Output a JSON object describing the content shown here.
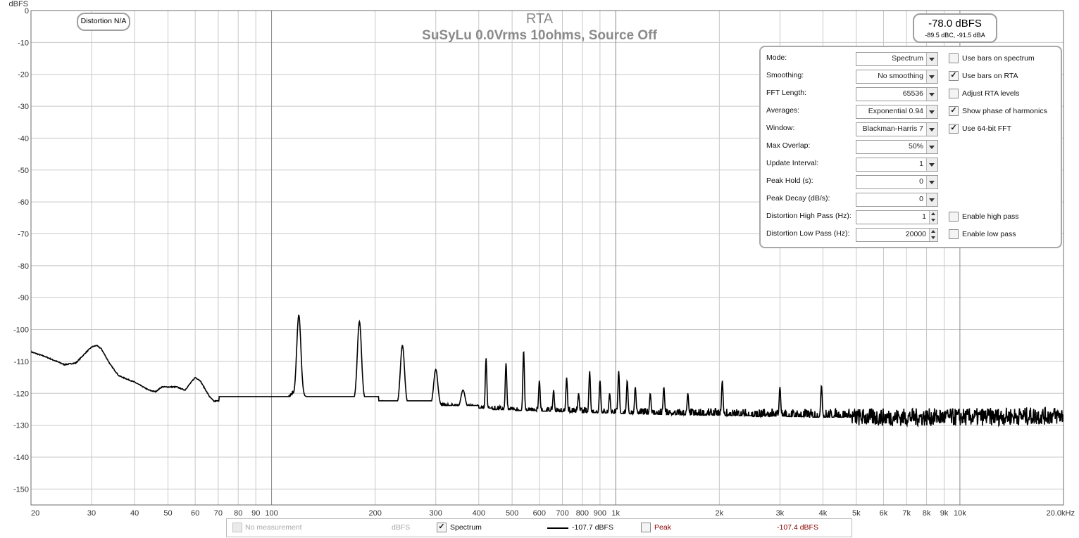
{
  "chart_data": {
    "type": "line",
    "title": "RTA",
    "subtitle": "SuSyLu 0.0Vrms 10ohms, Source Off",
    "ylabel": "dBFS",
    "xlabel": "",
    "xscale": "log",
    "xlim": [
      20,
      20000
    ],
    "ylim": [
      -155,
      0
    ],
    "y_ticks": [
      0,
      -10,
      -20,
      -30,
      -40,
      -50,
      -60,
      -70,
      -80,
      -90,
      -100,
      -110,
      -120,
      -130,
      -140,
      -150
    ],
    "x_ticks": [
      {
        "v": 20,
        "label": "20"
      },
      {
        "v": 30,
        "label": "30"
      },
      {
        "v": 40,
        "label": "40"
      },
      {
        "v": 50,
        "label": "50"
      },
      {
        "v": 60,
        "label": "60"
      },
      {
        "v": 70,
        "label": "70"
      },
      {
        "v": 80,
        "label": "80"
      },
      {
        "v": 90,
        "label": "90"
      },
      {
        "v": 100,
        "label": "100"
      },
      {
        "v": 200,
        "label": "200"
      },
      {
        "v": 300,
        "label": "300"
      },
      {
        "v": 400,
        "label": "400"
      },
      {
        "v": 500,
        "label": "500"
      },
      {
        "v": 600,
        "label": "600"
      },
      {
        "v": 700,
        "label": "700"
      },
      {
        "v": 800,
        "label": "800"
      },
      {
        "v": 900,
        "label": "900"
      },
      {
        "v": 1000,
        "label": "1k"
      },
      {
        "v": 2000,
        "label": "2k"
      },
      {
        "v": 3000,
        "label": "3k"
      },
      {
        "v": 4000,
        "label": "4k"
      },
      {
        "v": 5000,
        "label": "5k"
      },
      {
        "v": 6000,
        "label": "6k"
      },
      {
        "v": 7000,
        "label": "7k"
      },
      {
        "v": 8000,
        "label": "8k"
      },
      {
        "v": 9000,
        "label": "9k"
      },
      {
        "v": 10000,
        "label": "10k"
      },
      {
        "v": 20000,
        "label": "20.0kHz"
      }
    ],
    "grid": true,
    "series": [
      {
        "name": "Spectrum",
        "color": "#000000",
        "noise_floor": [
          [
            20,
            -107
          ],
          [
            22,
            -108.5
          ],
          [
            25,
            -111
          ],
          [
            27,
            -110.5
          ],
          [
            29,
            -107
          ],
          [
            30,
            -105.5
          ],
          [
            31,
            -105
          ],
          [
            32,
            -106
          ],
          [
            34,
            -111
          ],
          [
            36,
            -114.5
          ],
          [
            40,
            -116.5
          ],
          [
            44,
            -119
          ],
          [
            46,
            -119.5
          ],
          [
            48,
            -118
          ],
          [
            50,
            -118
          ],
          [
            53,
            -118
          ],
          [
            56,
            -119
          ],
          [
            60,
            -115
          ],
          [
            62,
            -116
          ],
          [
            66,
            -121
          ],
          [
            68,
            -122.5
          ],
          [
            75,
            -122
          ],
          [
            78,
            -123.5
          ],
          [
            82,
            -123
          ],
          [
            86,
            -122
          ],
          [
            95,
            -122.5
          ],
          [
            105,
            -123
          ],
          [
            110,
            -122
          ],
          [
            115,
            -120
          ],
          [
            125,
            -122
          ],
          [
            135,
            -124
          ],
          [
            150,
            -122
          ],
          [
            170,
            -122
          ],
          [
            200,
            -123
          ],
          [
            250,
            -124
          ],
          [
            300,
            -124
          ],
          [
            400,
            -125
          ],
          [
            500,
            -125.5
          ],
          [
            700,
            -126
          ],
          [
            1000,
            -126.5
          ],
          [
            2000,
            -127
          ],
          [
            4000,
            -127.5
          ],
          [
            10000,
            -127.5
          ],
          [
            20000,
            -127
          ]
        ],
        "peaks": [
          [
            120,
            -95.5
          ],
          [
            180,
            -97.5
          ],
          [
            240,
            -105
          ],
          [
            300,
            -112.5
          ],
          [
            360,
            -119
          ],
          [
            420,
            -109
          ],
          [
            480,
            -110.5
          ],
          [
            540,
            -106.5
          ],
          [
            600,
            -116
          ],
          [
            660,
            -119
          ],
          [
            720,
            -115
          ],
          [
            780,
            -120
          ],
          [
            840,
            -113
          ],
          [
            900,
            -116
          ],
          [
            960,
            -120
          ],
          [
            1020,
            -113
          ],
          [
            1080,
            -116
          ],
          [
            1140,
            -118
          ],
          [
            1260,
            -120
          ],
          [
            1380,
            -118
          ],
          [
            1620,
            -120
          ],
          [
            2040,
            -116
          ],
          [
            3000,
            -118
          ],
          [
            3960,
            -117.5
          ]
        ]
      }
    ]
  },
  "overlay": {
    "distortion_label": "Distortion N/A",
    "level_main": "-78.0 dBFS",
    "level_sub": "-89.5 dBC, -91.5 dBA"
  },
  "panel": {
    "rows": [
      {
        "label": "Mode:",
        "value": "Spectrum",
        "kind": "dropdown"
      },
      {
        "label": "Smoothing:",
        "value": "No  smoothing",
        "kind": "dropdown"
      },
      {
        "label": "FFT Length:",
        "value": "65536",
        "kind": "dropdown"
      },
      {
        "label": "Averages:",
        "value": "Exponential 0.94",
        "kind": "dropdown"
      },
      {
        "label": "Window:",
        "value": "Blackman-Harris 7",
        "kind": "dropdown"
      },
      {
        "label": "Max Overlap:",
        "value": "50%",
        "kind": "dropdown"
      },
      {
        "label": "Update Interval:",
        "value": "1",
        "kind": "dropdown"
      },
      {
        "label": "Peak Hold (s):",
        "value": "0",
        "kind": "dropdown"
      },
      {
        "label": "Peak Decay (dB/s):",
        "value": "0",
        "kind": "dropdown"
      },
      {
        "label": "Distortion High Pass (Hz):",
        "value": "1",
        "kind": "spin"
      },
      {
        "label": "Distortion Low Pass (Hz):",
        "value": "20000",
        "kind": "spin"
      }
    ],
    "checks": [
      {
        "label": "Use bars on spectrum",
        "checked": false,
        "row": 0
      },
      {
        "label": "Use bars on RTA",
        "checked": true,
        "row": 1
      },
      {
        "label": "Adjust RTA levels",
        "checked": false,
        "row": 2
      },
      {
        "label": "Show phase of harmonics",
        "checked": true,
        "row": 3
      },
      {
        "label": "Use 64-bit FFT",
        "checked": true,
        "row": 4
      },
      {
        "label": "Enable high pass",
        "checked": false,
        "row": 9
      },
      {
        "label": "Enable low pass",
        "checked": false,
        "row": 10
      }
    ]
  },
  "legend": {
    "no_measurement": "No measurement",
    "no_measurement_unit": "dBFS",
    "spectrum_label": "Spectrum",
    "spectrum_checked": true,
    "spectrum_value": "-107.7 dBFS",
    "peak_label": "Peak",
    "peak_checked": false,
    "peak_value": "-107.4 dBFS",
    "peak_color": "#8b0000"
  }
}
